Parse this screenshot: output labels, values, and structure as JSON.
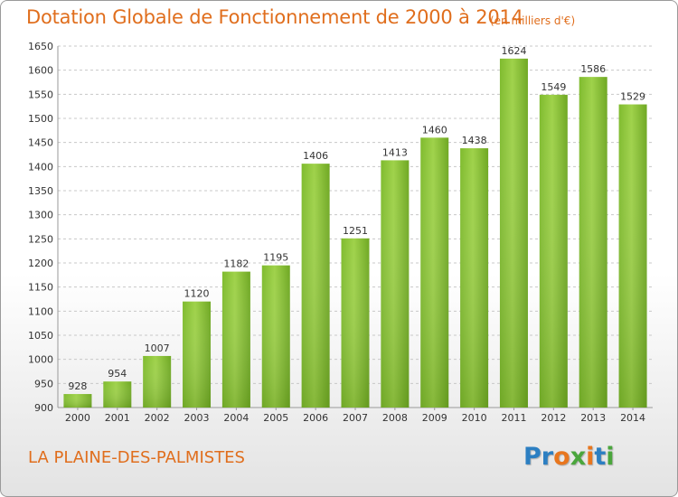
{
  "header": {
    "title": "Dotation Globale de Fonctionnement de 2000 à 2014",
    "unit_note": "(en milliers d'€)"
  },
  "footer": {
    "commune": "LA PLAINE-DES-PALMISTES",
    "logo_letters": [
      "P",
      "r",
      "o",
      "x",
      "i",
      "t",
      "i"
    ],
    "logo_colors": [
      "#2c7fc2",
      "#2c7fc2",
      "#e8761e",
      "#4aa63c",
      "#e8761e",
      "#2c7fc2",
      "#4aa63c"
    ]
  },
  "chart_data": {
    "type": "bar",
    "categories": [
      "2000",
      "2001",
      "2002",
      "2003",
      "2004",
      "2005",
      "2006",
      "2007",
      "2008",
      "2009",
      "2010",
      "2011",
      "2012",
      "2013",
      "2014"
    ],
    "values": [
      928,
      954,
      1007,
      1120,
      1182,
      1195,
      1406,
      1251,
      1413,
      1460,
      1438,
      1624,
      1549,
      1586,
      1529
    ],
    "ylim": [
      900,
      1650
    ],
    "yticks": [
      900,
      950,
      1000,
      1050,
      1100,
      1150,
      1200,
      1250,
      1300,
      1350,
      1400,
      1450,
      1500,
      1550,
      1600,
      1650
    ],
    "grid": true,
    "bar_color": "#8cc63f",
    "bar_color_dark": "#6aa420"
  }
}
